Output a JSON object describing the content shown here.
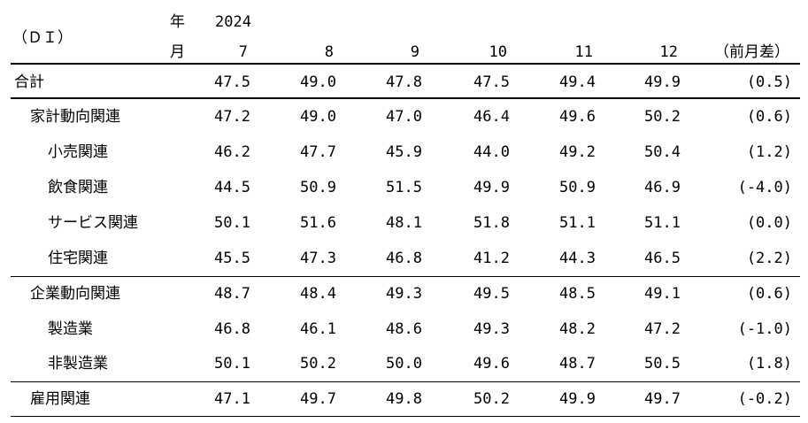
{
  "header": {
    "unit": "（ＤＩ）",
    "year_label": "年",
    "month_label": "月",
    "year": "2024",
    "months": [
      "7",
      "8",
      "9",
      "10",
      "11",
      "12"
    ],
    "diff_label": "（前月差）"
  },
  "rows": [
    {
      "label": "合計",
      "values": [
        "47.5",
        "49.0",
        "47.8",
        "47.5",
        "49.4",
        "49.9"
      ],
      "diff": "(0.5)"
    },
    {
      "label": "家計動向関連",
      "values": [
        "47.2",
        "49.0",
        "47.0",
        "46.4",
        "49.6",
        "50.2"
      ],
      "diff": "(0.6)"
    },
    {
      "label": "小売関連",
      "values": [
        "46.2",
        "47.7",
        "45.9",
        "44.0",
        "49.2",
        "50.4"
      ],
      "diff": "(1.2)"
    },
    {
      "label": "飲食関連",
      "values": [
        "44.5",
        "50.9",
        "51.5",
        "49.9",
        "50.9",
        "46.9"
      ],
      "diff": "(-4.0)"
    },
    {
      "label": "サービス関連",
      "values": [
        "50.1",
        "51.6",
        "48.1",
        "51.8",
        "51.1",
        "51.1"
      ],
      "diff": "(0.0)"
    },
    {
      "label": "住宅関連",
      "values": [
        "45.5",
        "47.3",
        "46.8",
        "41.2",
        "44.3",
        "46.5"
      ],
      "diff": "(2.2)"
    },
    {
      "label": "企業動向関連",
      "values": [
        "48.7",
        "48.4",
        "49.3",
        "49.5",
        "48.5",
        "49.1"
      ],
      "diff": "(0.6)"
    },
    {
      "label": "製造業",
      "values": [
        "46.8",
        "46.1",
        "48.6",
        "49.3",
        "48.2",
        "47.2"
      ],
      "diff": "(-1.0)"
    },
    {
      "label": "非製造業",
      "values": [
        "50.1",
        "50.2",
        "50.0",
        "49.6",
        "48.7",
        "50.5"
      ],
      "diff": "(1.8)"
    },
    {
      "label": "雇用関連",
      "values": [
        "47.1",
        "49.7",
        "49.8",
        "50.2",
        "49.9",
        "49.7"
      ],
      "diff": "(-0.2)"
    }
  ]
}
